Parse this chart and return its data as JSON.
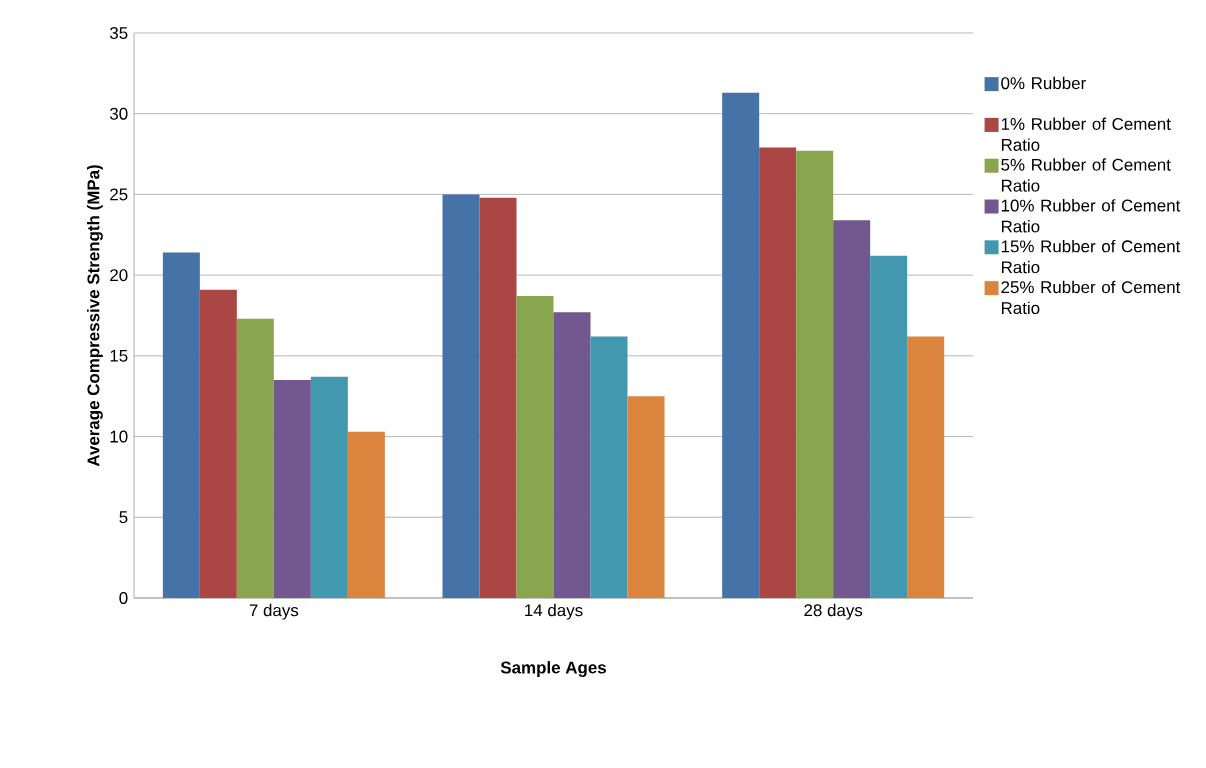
{
  "chart_data": {
    "type": "bar",
    "xlabel": "Sample Ages",
    "ylabel": "Average Compressive Strength (MPa)",
    "categories": [
      "7 days",
      "14 days",
      "28 days"
    ],
    "series": [
      {
        "name": "0% Rubber",
        "color": "#4572a7",
        "values": [
          21.4,
          25.0,
          31.3
        ]
      },
      {
        "name": "1% Rubber of Cement Ratio",
        "color": "#aa4643",
        "values": [
          19.1,
          24.8,
          27.9
        ]
      },
      {
        "name": "5% Rubber of Cement Ratio",
        "color": "#89a54e",
        "values": [
          17.3,
          18.7,
          27.7
        ]
      },
      {
        "name": "10% Rubber of Cement Ratio",
        "color": "#71588f",
        "values": [
          13.5,
          17.7,
          23.4
        ]
      },
      {
        "name": "15% Rubber of Cement Ratio",
        "color": "#4198af",
        "values": [
          13.7,
          16.2,
          21.2
        ]
      },
      {
        "name": "25% Rubber of Cement Ratio",
        "color": "#db843d",
        "values": [
          10.3,
          12.5,
          16.2
        ]
      }
    ],
    "ylim": [
      0,
      35
    ],
    "yticks": [
      0,
      5,
      10,
      15,
      20,
      25,
      30,
      35
    ],
    "grid": "y",
    "legend": "right"
  }
}
